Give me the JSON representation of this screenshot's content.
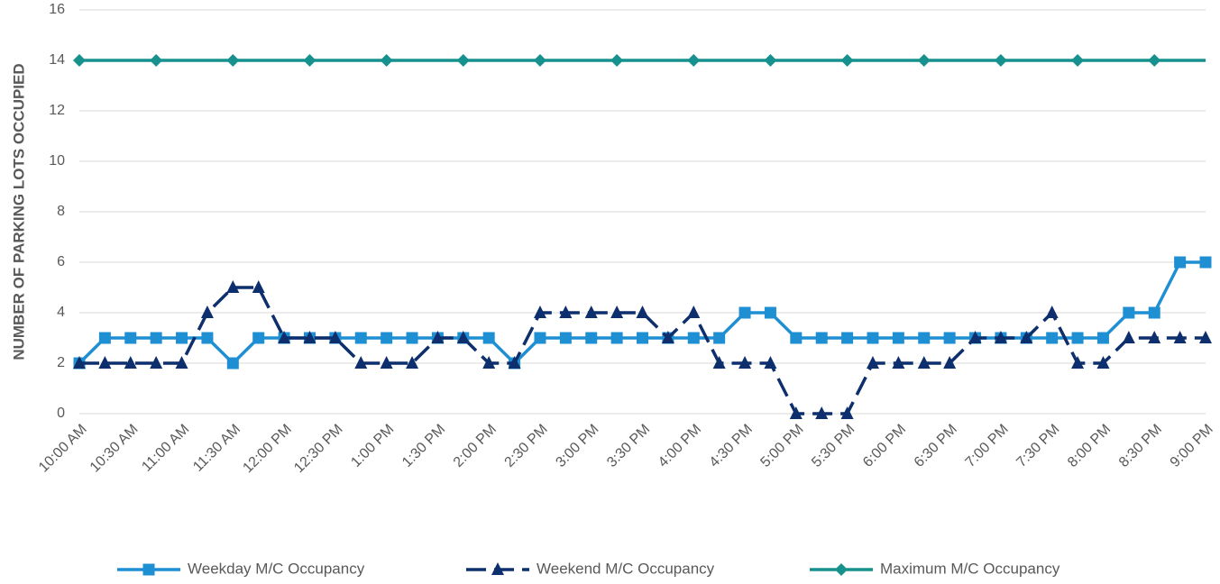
{
  "chart_data": {
    "type": "line",
    "y_label": "NUMBER OF PARKING LOTS OCCUPIED",
    "categories": [
      "10:00 AM",
      null,
      "10:30 AM",
      null,
      "11:00 AM",
      null,
      "11:30 AM",
      null,
      "12:00 PM",
      null,
      "12:30 PM",
      null,
      "1:00 PM",
      null,
      "1:30 PM",
      null,
      "2:00 PM",
      null,
      "2:30 PM",
      null,
      "3:00 PM",
      null,
      "3:30 PM",
      null,
      "4:00 PM",
      null,
      "4:30 PM",
      null,
      "5:00 PM",
      null,
      "5:30 PM",
      null,
      "6:00 PM",
      null,
      "6:30 PM",
      null,
      "7:00 PM",
      null,
      "7:30 PM",
      null,
      "8:00 PM",
      null,
      "8:30 PM",
      null,
      "9:00 PM"
    ],
    "series": [
      {
        "name": "Weekday M/C Occupancy",
        "color": "#1f8fd3",
        "marker": "square",
        "dash": "solid",
        "values": [
          2,
          3,
          3,
          3,
          3,
          3,
          2,
          3,
          3,
          3,
          3,
          3,
          3,
          3,
          3,
          3,
          3,
          2,
          3,
          3,
          3,
          3,
          3,
          3,
          3,
          3,
          4,
          4,
          3,
          3,
          3,
          3,
          3,
          3,
          3,
          3,
          3,
          3,
          3,
          3,
          3,
          4,
          4,
          6,
          6
        ]
      },
      {
        "name": "Weekend M/C Occupancy",
        "color": "#0e2f6d",
        "marker": "triangle",
        "dash": "long-dash",
        "values": [
          2,
          2,
          2,
          2,
          2,
          4,
          5,
          5,
          3,
          3,
          3,
          2,
          2,
          2,
          3,
          3,
          2,
          2,
          4,
          4,
          4,
          4,
          4,
          3,
          4,
          2,
          2,
          2,
          0,
          0,
          0,
          2,
          2,
          2,
          2,
          3,
          3,
          3,
          4,
          2,
          2,
          3,
          3,
          3,
          3
        ]
      },
      {
        "name": "Maximum M/C Occupancy",
        "color": "#16918e",
        "marker": "diamond",
        "dash": "solid",
        "marker_every": 3,
        "values": [
          14,
          14,
          14,
          14,
          14,
          14,
          14,
          14,
          14,
          14,
          14,
          14,
          14,
          14,
          14,
          14,
          14,
          14,
          14,
          14,
          14,
          14,
          14,
          14,
          14,
          14,
          14,
          14,
          14,
          14,
          14,
          14,
          14,
          14,
          14,
          14,
          14,
          14,
          14,
          14,
          14,
          14,
          14,
          14,
          14
        ]
      }
    ],
    "ylim": [
      0,
      16
    ],
    "yticks": [
      0,
      2,
      4,
      6,
      8,
      10,
      12,
      14,
      16
    ],
    "grid": true,
    "legend": "bottom"
  }
}
